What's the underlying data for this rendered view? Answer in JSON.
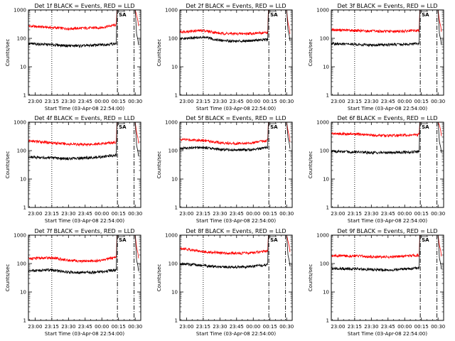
{
  "chart_data": [
    {
      "type": "line",
      "title": "Det 1f BLACK = Events, RED = LLD",
      "xlabel": "Start Time (03-Apr-08 22:54:00)",
      "ylabel": "Counts/sec",
      "yscale": "log",
      "ylim": [
        1,
        1000
      ],
      "y_tick_labels": [
        "1",
        "10",
        "100",
        "1000"
      ],
      "xlim": [
        "22:54",
        "00:35"
      ],
      "x_tick_labels": [
        "23:00",
        "23:15",
        "23:30",
        "23:45",
        "00:00",
        "00:15",
        "00:30"
      ],
      "annotation": "SA",
      "vlines": [
        {
          "time": "23:15",
          "style": "dotted"
        },
        {
          "time": "00:14",
          "style": "dash-dot"
        },
        {
          "time": "00:29",
          "style": "dash-dot"
        }
      ],
      "series": [
        {
          "color": "#ff0000",
          "x": [
            "22:54",
            "23:15",
            "23:30",
            "23:45",
            "00:00",
            "00:13"
          ],
          "y": [
            270,
            240,
            220,
            230,
            240,
            300
          ]
        },
        {
          "color": "#000000",
          "x": [
            "22:54",
            "23:15",
            "23:30",
            "23:45",
            "00:00",
            "00:13"
          ],
          "y": [
            65,
            60,
            55,
            55,
            60,
            65
          ]
        }
      ]
    },
    {
      "type": "line",
      "title": "Det 2f BLACK = Events, RED = LLD",
      "xlabel": "Start Time (03-Apr-08 22:54:00)",
      "ylabel": "Counts/sec",
      "yscale": "log",
      "ylim": [
        1,
        1000
      ],
      "y_tick_labels": [
        "1",
        "10",
        "100",
        "1000"
      ],
      "xlim": [
        "22:54",
        "00:35"
      ],
      "x_tick_labels": [
        "23:00",
        "23:15",
        "23:30",
        "23:45",
        "00:00",
        "00:15",
        "00:30"
      ],
      "annotation": "SA",
      "vlines": [
        {
          "time": "23:15",
          "style": "dotted"
        },
        {
          "time": "00:14",
          "style": "dash-dot"
        },
        {
          "time": "00:29",
          "style": "dash-dot"
        }
      ],
      "series": [
        {
          "color": "#ff0000",
          "x": [
            "22:54",
            "23:15",
            "23:30",
            "23:45",
            "00:00",
            "00:13"
          ],
          "y": [
            170,
            190,
            150,
            145,
            150,
            160
          ]
        },
        {
          "color": "#000000",
          "x": [
            "22:54",
            "23:15",
            "23:30",
            "23:45",
            "00:00",
            "00:13"
          ],
          "y": [
            95,
            110,
            85,
            80,
            85,
            90
          ]
        }
      ]
    },
    {
      "type": "line",
      "title": "Det 3f BLACK = Events, RED = LLD",
      "xlabel": "Start Time (03-Apr-08 22:54:00)",
      "ylabel": "Counts/sec",
      "yscale": "log",
      "ylim": [
        1,
        1000
      ],
      "y_tick_labels": [
        "1",
        "10",
        "100",
        "1000"
      ],
      "xlim": [
        "22:54",
        "00:35"
      ],
      "x_tick_labels": [
        "23:00",
        "23:15",
        "23:30",
        "23:45",
        "00:00",
        "00:15",
        "00:30"
      ],
      "annotation": "SA",
      "vlines": [
        {
          "time": "23:15",
          "style": "dotted"
        },
        {
          "time": "00:14",
          "style": "dash-dot"
        },
        {
          "time": "00:29",
          "style": "dash-dot"
        }
      ],
      "series": [
        {
          "color": "#ff0000",
          "x": [
            "22:54",
            "23:15",
            "23:30",
            "23:45",
            "00:00",
            "00:13"
          ],
          "y": [
            200,
            190,
            180,
            175,
            180,
            190
          ]
        },
        {
          "color": "#000000",
          "x": [
            "22:54",
            "23:15",
            "23:30",
            "23:45",
            "00:00",
            "00:13"
          ],
          "y": [
            65,
            62,
            58,
            60,
            62,
            65
          ]
        }
      ]
    },
    {
      "type": "line",
      "title": "Det 4f BLACK = Events, RED = LLD",
      "xlabel": "Start Time (03-Apr-08 22:54:00)",
      "ylabel": "Counts/sec",
      "yscale": "log",
      "ylim": [
        1,
        1000
      ],
      "y_tick_labels": [
        "1",
        "10",
        "100",
        "1000"
      ],
      "xlim": [
        "22:54",
        "00:35"
      ],
      "x_tick_labels": [
        "23:00",
        "23:15",
        "23:30",
        "23:45",
        "00:00",
        "00:15",
        "00:30"
      ],
      "annotation": "SA",
      "vlines": [
        {
          "time": "23:15",
          "style": "dotted"
        },
        {
          "time": "00:14",
          "style": "dash-dot"
        },
        {
          "time": "00:29",
          "style": "dash-dot"
        }
      ],
      "series": [
        {
          "color": "#ff0000",
          "x": [
            "22:54",
            "23:15",
            "23:30",
            "23:45",
            "00:00",
            "00:13"
          ],
          "y": [
            220,
            190,
            170,
            165,
            175,
            200
          ]
        },
        {
          "color": "#000000",
          "x": [
            "22:54",
            "23:15",
            "23:30",
            "23:45",
            "00:00",
            "00:13"
          ],
          "y": [
            60,
            55,
            52,
            55,
            60,
            70
          ]
        }
      ]
    },
    {
      "type": "line",
      "title": "Det 5f BLACK = Events, RED = LLD",
      "xlabel": "Start Time (03-Apr-08 22:54:00)",
      "ylabel": "Counts/sec",
      "yscale": "log",
      "ylim": [
        1,
        1000
      ],
      "y_tick_labels": [
        "1",
        "10",
        "100",
        "1000"
      ],
      "xlim": [
        "22:54",
        "00:35"
      ],
      "x_tick_labels": [
        "23:00",
        "23:15",
        "23:30",
        "23:45",
        "00:00",
        "00:15",
        "00:30"
      ],
      "annotation": "SA",
      "vlines": [
        {
          "time": "23:15",
          "style": "dotted"
        },
        {
          "time": "00:14",
          "style": "dash-dot"
        },
        {
          "time": "00:29",
          "style": "dash-dot"
        }
      ],
      "series": [
        {
          "color": "#ff0000",
          "x": [
            "22:54",
            "23:15",
            "23:30",
            "23:45",
            "00:00",
            "00:13"
          ],
          "y": [
            250,
            230,
            190,
            180,
            190,
            230
          ]
        },
        {
          "color": "#000000",
          "x": [
            "22:54",
            "23:15",
            "23:30",
            "23:45",
            "00:00",
            "00:13"
          ],
          "y": [
            120,
            130,
            110,
            105,
            110,
            130
          ]
        }
      ]
    },
    {
      "type": "line",
      "title": "Det 6f BLACK = Events, RED = LLD",
      "xlabel": "Start Time (03-Apr-08 22:54:00)",
      "ylabel": "Counts/sec",
      "yscale": "log",
      "ylim": [
        1,
        1000
      ],
      "y_tick_labels": [
        "1",
        "10",
        "100",
        "1000"
      ],
      "xlim": [
        "22:54",
        "00:35"
      ],
      "x_tick_labels": [
        "23:00",
        "23:15",
        "23:30",
        "23:45",
        "00:00",
        "00:15",
        "00:30"
      ],
      "annotation": "SA",
      "vlines": [
        {
          "time": "23:15",
          "style": "dotted"
        },
        {
          "time": "00:14",
          "style": "dash-dot"
        },
        {
          "time": "00:29",
          "style": "dash-dot"
        }
      ],
      "series": [
        {
          "color": "#ff0000",
          "x": [
            "22:54",
            "23:15",
            "23:30",
            "23:45",
            "00:00",
            "00:13"
          ],
          "y": [
            400,
            380,
            350,
            340,
            350,
            360
          ]
        },
        {
          "color": "#000000",
          "x": [
            "22:54",
            "23:15",
            "23:30",
            "23:45",
            "00:00",
            "00:13"
          ],
          "y": [
            95,
            90,
            85,
            85,
            88,
            92
          ]
        }
      ]
    },
    {
      "type": "line",
      "title": "Det 7f BLACK = Events, RED = LLD",
      "xlabel": "Start Time (03-Apr-08 22:54:00)",
      "ylabel": "Counts/sec",
      "yscale": "log",
      "ylim": [
        1,
        1000
      ],
      "y_tick_labels": [
        "1",
        "10",
        "100",
        "1000"
      ],
      "xlim": [
        "22:54",
        "00:35"
      ],
      "x_tick_labels": [
        "23:00",
        "23:15",
        "23:30",
        "23:45",
        "00:00",
        "00:15",
        "00:30"
      ],
      "annotation": "SA",
      "vlines": [
        {
          "time": "23:15",
          "style": "dotted"
        },
        {
          "time": "00:14",
          "style": "dash-dot"
        },
        {
          "time": "00:29",
          "style": "dash-dot"
        }
      ],
      "series": [
        {
          "color": "#ff0000",
          "x": [
            "22:54",
            "23:15",
            "23:30",
            "23:45",
            "00:00",
            "00:13"
          ],
          "y": [
            150,
            160,
            130,
            120,
            130,
            170
          ]
        },
        {
          "color": "#000000",
          "x": [
            "22:54",
            "23:15",
            "23:30",
            "23:45",
            "00:00",
            "00:13"
          ],
          "y": [
            55,
            60,
            50,
            48,
            52,
            60
          ]
        }
      ]
    },
    {
      "type": "line",
      "title": "Det 8f BLACK = Events, RED = LLD",
      "xlabel": "Start Time (03-Apr-08 22:54:00)",
      "ylabel": "Counts/sec",
      "yscale": "log",
      "ylim": [
        1,
        1000
      ],
      "y_tick_labels": [
        "1",
        "10",
        "100",
        "1000"
      ],
      "xlim": [
        "22:54",
        "00:35"
      ],
      "x_tick_labels": [
        "23:00",
        "23:15",
        "23:30",
        "23:45",
        "00:00",
        "00:15",
        "00:30"
      ],
      "annotation": "SA",
      "vlines": [
        {
          "time": "23:15",
          "style": "dotted"
        },
        {
          "time": "00:14",
          "style": "dash-dot"
        },
        {
          "time": "00:29",
          "style": "dash-dot"
        }
      ],
      "series": [
        {
          "color": "#ff0000",
          "x": [
            "22:54",
            "23:15",
            "23:30",
            "23:45",
            "00:00",
            "00:13"
          ],
          "y": [
            350,
            260,
            240,
            230,
            240,
            280
          ]
        },
        {
          "color": "#000000",
          "x": [
            "22:54",
            "23:15",
            "23:30",
            "23:45",
            "00:00",
            "00:13"
          ],
          "y": [
            100,
            85,
            75,
            75,
            80,
            90
          ]
        }
      ]
    },
    {
      "type": "line",
      "title": "Det 9f BLACK = Events, RED = LLD",
      "xlabel": "Start Time (03-Apr-08 22:54:00)",
      "ylabel": "Counts/sec",
      "yscale": "log",
      "ylim": [
        1,
        1000
      ],
      "y_tick_labels": [
        "1",
        "10",
        "100",
        "1000"
      ],
      "xlim": [
        "22:54",
        "00:35"
      ],
      "x_tick_labels": [
        "23:00",
        "23:15",
        "23:30",
        "23:45",
        "00:00",
        "00:15",
        "00:30"
      ],
      "annotation": "SA",
      "vlines": [
        {
          "time": "23:15",
          "style": "dotted"
        },
        {
          "time": "00:14",
          "style": "dash-dot"
        },
        {
          "time": "00:29",
          "style": "dash-dot"
        }
      ],
      "series": [
        {
          "color": "#ff0000",
          "x": [
            "22:54",
            "23:15",
            "23:30",
            "23:45",
            "00:00",
            "00:13"
          ],
          "y": [
            190,
            185,
            175,
            170,
            180,
            200
          ]
        },
        {
          "color": "#000000",
          "x": [
            "22:54",
            "23:15",
            "23:30",
            "23:45",
            "00:00",
            "00:13"
          ],
          "y": [
            68,
            65,
            62,
            60,
            65,
            70
          ]
        }
      ]
    }
  ]
}
